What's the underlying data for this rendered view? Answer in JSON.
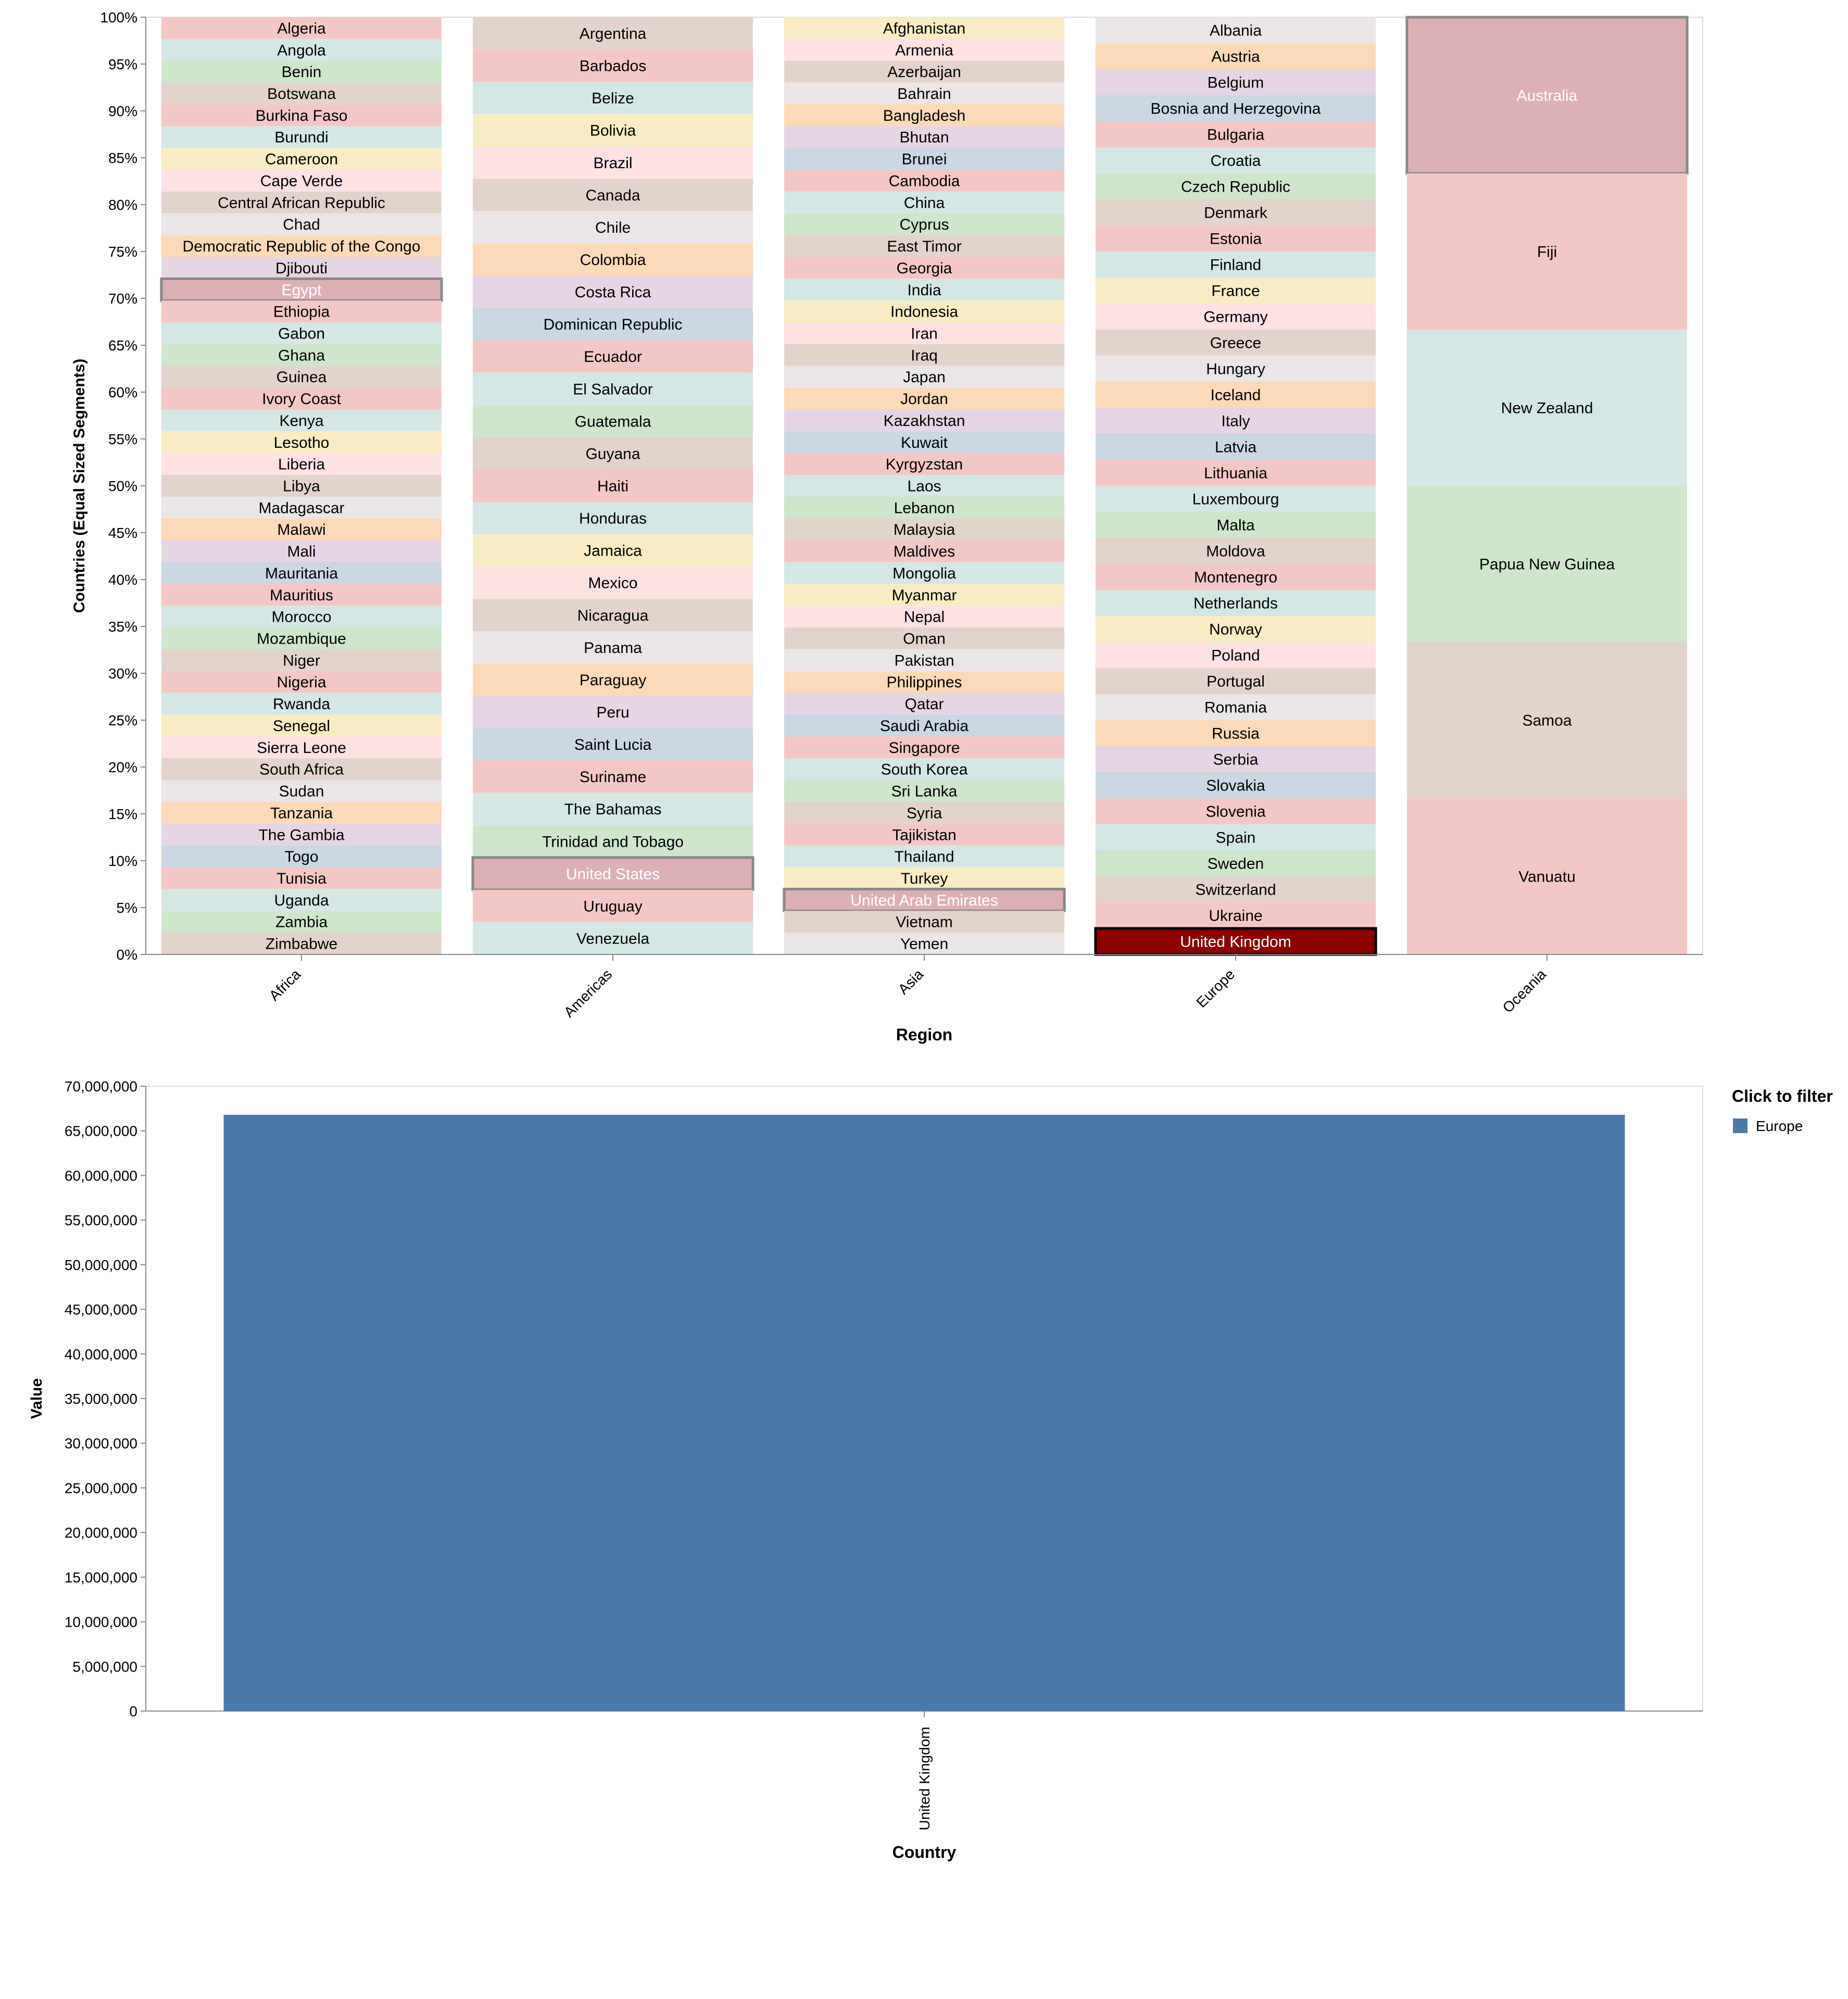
{
  "chart_data": [
    {
      "type": "bar",
      "stacked": true,
      "normalized": true,
      "xlabel": "Region",
      "ylabel": "Countries (Equal Sized Segments)",
      "ylim": [
        0,
        1
      ],
      "y_ticks": [
        "0%",
        "5%",
        "10%",
        "15%",
        "20%",
        "25%",
        "30%",
        "35%",
        "40%",
        "45%",
        "50%",
        "55%",
        "60%",
        "65%",
        "70%",
        "75%",
        "80%",
        "85%",
        "90%",
        "95%",
        "100%"
      ],
      "grid": false,
      "categories": [
        "Africa",
        "Americas",
        "Asia",
        "Europe",
        "Oceania"
      ],
      "groups": [
        {
          "region": "Africa",
          "countries": [
            "Algeria",
            "Angola",
            "Benin",
            "Botswana",
            "Burkina Faso",
            "Burundi",
            "Cameroon",
            "Cape Verde",
            "Central African Republic",
            "Chad",
            "Democratic Republic of the Congo",
            "Djibouti",
            "Egypt",
            "Ethiopia",
            "Gabon",
            "Ghana",
            "Guinea",
            "Ivory Coast",
            "Kenya",
            "Lesotho",
            "Liberia",
            "Libya",
            "Madagascar",
            "Malawi",
            "Mali",
            "Mauritania",
            "Mauritius",
            "Morocco",
            "Mozambique",
            "Niger",
            "Nigeria",
            "Rwanda",
            "Senegal",
            "Sierra Leone",
            "South Africa",
            "Sudan",
            "Tanzania",
            "The Gambia",
            "Togo",
            "Tunisia",
            "Uganda",
            "Zambia",
            "Zimbabwe"
          ],
          "highlighted": [
            "Egypt"
          ]
        },
        {
          "region": "Americas",
          "countries": [
            "Argentina",
            "Barbados",
            "Belize",
            "Bolivia",
            "Brazil",
            "Canada",
            "Chile",
            "Colombia",
            "Costa Rica",
            "Dominican Republic",
            "Ecuador",
            "El Salvador",
            "Guatemala",
            "Guyana",
            "Haiti",
            "Honduras",
            "Jamaica",
            "Mexico",
            "Nicaragua",
            "Panama",
            "Paraguay",
            "Peru",
            "Saint Lucia",
            "Suriname",
            "The Bahamas",
            "Trinidad and Tobago",
            "United States",
            "Uruguay",
            "Venezuela"
          ],
          "highlighted": [
            "United States"
          ]
        },
        {
          "region": "Asia",
          "countries": [
            "Afghanistan",
            "Armenia",
            "Azerbaijan",
            "Bahrain",
            "Bangladesh",
            "Bhutan",
            "Brunei",
            "Cambodia",
            "China",
            "Cyprus",
            "East Timor",
            "Georgia",
            "India",
            "Indonesia",
            "Iran",
            "Iraq",
            "Japan",
            "Jordan",
            "Kazakhstan",
            "Kuwait",
            "Kyrgyzstan",
            "Laos",
            "Lebanon",
            "Malaysia",
            "Maldives",
            "Mongolia",
            "Myanmar",
            "Nepal",
            "Oman",
            "Pakistan",
            "Philippines",
            "Qatar",
            "Saudi Arabia",
            "Singapore",
            "South Korea",
            "Sri Lanka",
            "Syria",
            "Tajikistan",
            "Thailand",
            "Turkey",
            "United Arab Emirates",
            "Vietnam",
            "Yemen"
          ],
          "highlighted": [
            "United Arab Emirates"
          ]
        },
        {
          "region": "Europe",
          "countries": [
            "Albania",
            "Austria",
            "Belgium",
            "Bosnia and Herzegovina",
            "Bulgaria",
            "Croatia",
            "Czech Republic",
            "Denmark",
            "Estonia",
            "Finland",
            "France",
            "Germany",
            "Greece",
            "Hungary",
            "Iceland",
            "Italy",
            "Latvia",
            "Lithuania",
            "Luxembourg",
            "Malta",
            "Moldova",
            "Montenegro",
            "Netherlands",
            "Norway",
            "Poland",
            "Portugal",
            "Romania",
            "Russia",
            "Serbia",
            "Slovakia",
            "Slovenia",
            "Spain",
            "Sweden",
            "Switzerland",
            "Ukraine",
            "United Kingdom"
          ],
          "highlighted": [],
          "selected": "United Kingdom"
        },
        {
          "region": "Oceania",
          "countries": [
            "Australia",
            "Fiji",
            "New Zealand",
            "Papua New Guinea",
            "Samoa",
            "Vanuatu"
          ],
          "highlighted": [
            "Australia"
          ]
        }
      ],
      "colors": {
        "palette": [
          "#f4c7c7",
          "#d4e7e4",
          "#cfe5cc",
          "#e2d4cd",
          "#f4c7c7",
          "#d4e7e4",
          "#f7ecc3",
          "#fde1e3",
          "#e2d4cd",
          "#eae6e6",
          "#fcd9b8",
          "#e6d5e3",
          "#cbd7e3"
        ],
        "highlight": "#dbb0b4",
        "highlight_border": "#888888",
        "selected": "#8b0000",
        "selected_border": "#000000"
      }
    },
    {
      "type": "bar",
      "categories": [
        "United Kingdom"
      ],
      "values": [
        66800000
      ],
      "xlabel": "Country",
      "ylabel": "Value",
      "ylim": [
        0,
        70000000
      ],
      "y_ticks": [
        "0",
        "5,000,000",
        "10,000,000",
        "15,000,000",
        "20,000,000",
        "25,000,000",
        "30,000,000",
        "35,000,000",
        "40,000,000",
        "45,000,000",
        "50,000,000",
        "55,000,000",
        "60,000,000",
        "65,000,000",
        "70,000,000"
      ],
      "legend": {
        "title": "Click to filter",
        "entries": [
          "Europe"
        ],
        "placement": "top-right"
      },
      "bar_color": "#4c78a8"
    }
  ]
}
